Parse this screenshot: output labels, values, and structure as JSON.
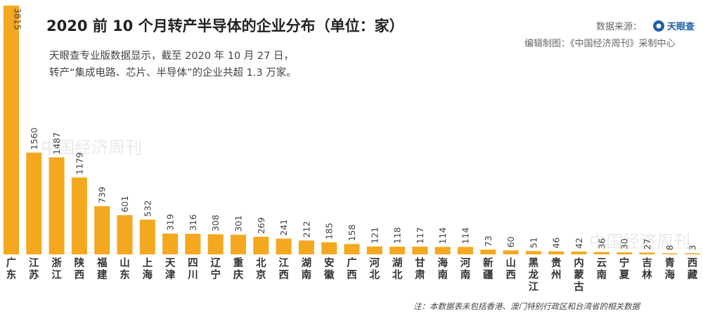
{
  "chart_data": {
    "type": "bar",
    "title": "2020 前 10 个月转产半导体的企业分布（单位：家）",
    "subtitle_lines": [
      "天眼查专业版数据显示，截至 2020 年 10 月 27 日，",
      "转产“集成电路、芯片、半导体”的企业共超 1.3 万家。"
    ],
    "source_label": "数据来源：",
    "source_brand": "天眼查",
    "source_credit": "编辑制图：《中国经济周刊》采制中心",
    "note": "注：本数据表未包括香港、澳门特别行政区和台湾省的相关数据",
    "categories": [
      "广东",
      "江苏",
      "浙江",
      "陕西",
      "福建",
      "山东",
      "上海",
      "天津",
      "四川",
      "辽宁",
      "重庆",
      "北京",
      "江西",
      "湖南",
      "安徽",
      "广西",
      "河北",
      "湖北",
      "甘肃",
      "海南",
      "河南",
      "新疆",
      "山西",
      "黑龙江",
      "贵州",
      "内蒙古",
      "云南",
      "宁夏",
      "吉林",
      "青海",
      "西藏"
    ],
    "values": [
      3815,
      1560,
      1487,
      1179,
      739,
      601,
      532,
      319,
      316,
      308,
      301,
      269,
      241,
      212,
      185,
      158,
      121,
      118,
      117,
      114,
      114,
      73,
      60,
      51,
      46,
      42,
      36,
      30,
      27,
      8,
      3
    ],
    "ylim": [
      0,
      3815
    ],
    "colors": {
      "bar": "#f3a81f",
      "logo": "#1f5fa8"
    },
    "watermark": "中国经济周刊"
  }
}
